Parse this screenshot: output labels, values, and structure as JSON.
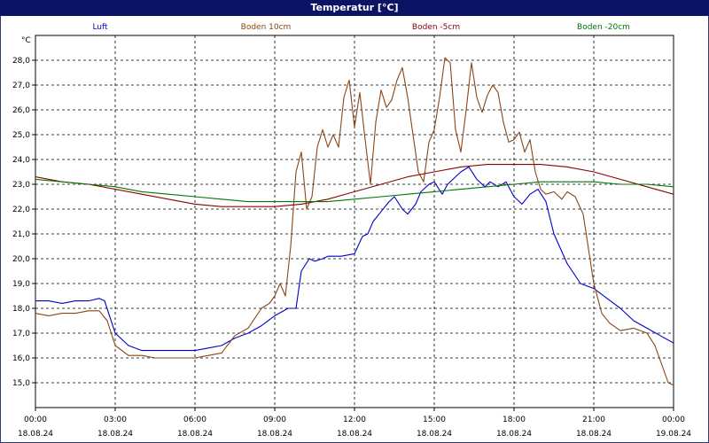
{
  "chart_data": {
    "type": "line",
    "title": "Temperatur [°C]",
    "ylabel": "°C",
    "ylim": [
      14.0,
      29.0
    ],
    "yticks": [
      15.0,
      16.0,
      17.0,
      18.0,
      19.0,
      20.0,
      21.0,
      22.0,
      23.0,
      24.0,
      25.0,
      26.0,
      27.0,
      28.0
    ],
    "ytick_labels": [
      "15,0",
      "16,0",
      "17,0",
      "18,0",
      "19,0",
      "20,0",
      "21,0",
      "22,0",
      "23,0",
      "24,0",
      "25,0",
      "26,0",
      "27,0",
      "28,0"
    ],
    "xlim": [
      0,
      24
    ],
    "xticks": [
      {
        "h": 0,
        "time": "00:00",
        "date": "18.08.24"
      },
      {
        "h": 3,
        "time": "03:00",
        "date": "18.08.24"
      },
      {
        "h": 6,
        "time": "06:00",
        "date": "18.08.24"
      },
      {
        "h": 9,
        "time": "09:00",
        "date": "18.08.24"
      },
      {
        "h": 12,
        "time": "12:00",
        "date": "18.08.24"
      },
      {
        "h": 15,
        "time": "15:00",
        "date": "18.08.24"
      },
      {
        "h": 18,
        "time": "18:00",
        "date": "18.08.24"
      },
      {
        "h": 21,
        "time": "21:00",
        "date": "18.08.24"
      },
      {
        "h": 24,
        "time": "00:00",
        "date": "19.08.24"
      }
    ],
    "grid": true,
    "legend_position": "top",
    "series": [
      {
        "name": "Luft",
        "color": "#0000cc",
        "points": [
          [
            0,
            18.3
          ],
          [
            0.5,
            18.3
          ],
          [
            1,
            18.2
          ],
          [
            1.5,
            18.3
          ],
          [
            2,
            18.3
          ],
          [
            2.4,
            18.4
          ],
          [
            2.6,
            18.3
          ],
          [
            3,
            17.0
          ],
          [
            3.5,
            16.5
          ],
          [
            4,
            16.3
          ],
          [
            4.5,
            16.3
          ],
          [
            5,
            16.3
          ],
          [
            5.5,
            16.3
          ],
          [
            6,
            16.3
          ],
          [
            6.5,
            16.4
          ],
          [
            7,
            16.5
          ],
          [
            7.5,
            16.8
          ],
          [
            8,
            17.0
          ],
          [
            8.5,
            17.3
          ],
          [
            9,
            17.7
          ],
          [
            9.5,
            18.0
          ],
          [
            9.8,
            18.0
          ],
          [
            10,
            19.5
          ],
          [
            10.3,
            20.0
          ],
          [
            10.5,
            19.9
          ],
          [
            10.8,
            20.0
          ],
          [
            11,
            20.1
          ],
          [
            11.5,
            20.1
          ],
          [
            12,
            20.2
          ],
          [
            12.3,
            20.9
          ],
          [
            12.5,
            21.0
          ],
          [
            12.7,
            21.5
          ],
          [
            13,
            21.9
          ],
          [
            13.3,
            22.3
          ],
          [
            13.5,
            22.5
          ],
          [
            13.8,
            22.0
          ],
          [
            14,
            21.8
          ],
          [
            14.3,
            22.2
          ],
          [
            14.5,
            22.7
          ],
          [
            14.8,
            23.0
          ],
          [
            15,
            23.1
          ],
          [
            15.3,
            22.6
          ],
          [
            15.5,
            23.0
          ],
          [
            15.8,
            23.3
          ],
          [
            16,
            23.5
          ],
          [
            16.3,
            23.7
          ],
          [
            16.6,
            23.2
          ],
          [
            16.9,
            22.9
          ],
          [
            17.1,
            23.1
          ],
          [
            17.4,
            22.9
          ],
          [
            17.7,
            23.1
          ],
          [
            18,
            22.5
          ],
          [
            18.3,
            22.2
          ],
          [
            18.6,
            22.6
          ],
          [
            18.9,
            22.8
          ],
          [
            19.2,
            22.3
          ],
          [
            19.5,
            21.0
          ],
          [
            20,
            19.8
          ],
          [
            20.5,
            19.0
          ],
          [
            21,
            18.8
          ],
          [
            21.5,
            18.4
          ],
          [
            22,
            18.0
          ],
          [
            22.5,
            17.5
          ],
          [
            23,
            17.2
          ],
          [
            23.5,
            16.9
          ],
          [
            24,
            16.6
          ]
        ]
      },
      {
        "name": "Boden 10cm",
        "color": "#8b4513",
        "points": [
          [
            0,
            17.8
          ],
          [
            0.5,
            17.7
          ],
          [
            1,
            17.8
          ],
          [
            1.5,
            17.8
          ],
          [
            2,
            17.9
          ],
          [
            2.4,
            17.9
          ],
          [
            2.7,
            17.5
          ],
          [
            3,
            16.5
          ],
          [
            3.5,
            16.1
          ],
          [
            4,
            16.1
          ],
          [
            4.5,
            16.0
          ],
          [
            5,
            16.0
          ],
          [
            5.5,
            16.0
          ],
          [
            6,
            16.0
          ],
          [
            6.5,
            16.1
          ],
          [
            7,
            16.2
          ],
          [
            7.5,
            16.9
          ],
          [
            8,
            17.2
          ],
          [
            8.5,
            18.0
          ],
          [
            8.8,
            18.2
          ],
          [
            9,
            18.5
          ],
          [
            9.2,
            19.0
          ],
          [
            9.4,
            18.5
          ],
          [
            9.6,
            20.5
          ],
          [
            9.8,
            23.5
          ],
          [
            10,
            24.3
          ],
          [
            10.2,
            22.0
          ],
          [
            10.4,
            22.5
          ],
          [
            10.6,
            24.5
          ],
          [
            10.8,
            25.2
          ],
          [
            11,
            24.5
          ],
          [
            11.2,
            25.0
          ],
          [
            11.4,
            24.5
          ],
          [
            11.6,
            26.5
          ],
          [
            11.8,
            27.2
          ],
          [
            12,
            25.3
          ],
          [
            12.2,
            26.7
          ],
          [
            12.4,
            24.8
          ],
          [
            12.6,
            23.0
          ],
          [
            12.8,
            25.5
          ],
          [
            13,
            26.8
          ],
          [
            13.2,
            26.1
          ],
          [
            13.4,
            26.4
          ],
          [
            13.6,
            27.2
          ],
          [
            13.8,
            27.7
          ],
          [
            14,
            26.5
          ],
          [
            14.2,
            25.0
          ],
          [
            14.4,
            23.5
          ],
          [
            14.6,
            23.1
          ],
          [
            14.8,
            24.7
          ],
          [
            15,
            25.2
          ],
          [
            15.2,
            26.5
          ],
          [
            15.4,
            28.1
          ],
          [
            15.6,
            27.9
          ],
          [
            15.8,
            25.2
          ],
          [
            16,
            24.3
          ],
          [
            16.2,
            26.0
          ],
          [
            16.4,
            27.9
          ],
          [
            16.6,
            26.5
          ],
          [
            16.8,
            25.9
          ],
          [
            17,
            26.6
          ],
          [
            17.2,
            27.0
          ],
          [
            17.4,
            26.7
          ],
          [
            17.6,
            25.5
          ],
          [
            17.8,
            24.7
          ],
          [
            18,
            24.8
          ],
          [
            18.2,
            25.1
          ],
          [
            18.4,
            24.3
          ],
          [
            18.6,
            24.8
          ],
          [
            18.8,
            23.5
          ],
          [
            19,
            22.8
          ],
          [
            19.2,
            22.6
          ],
          [
            19.5,
            22.7
          ],
          [
            19.8,
            22.4
          ],
          [
            20,
            22.7
          ],
          [
            20.3,
            22.5
          ],
          [
            20.6,
            21.8
          ],
          [
            21,
            19.0
          ],
          [
            21.3,
            17.8
          ],
          [
            21.6,
            17.4
          ],
          [
            22,
            17.1
          ],
          [
            22.5,
            17.2
          ],
          [
            23,
            17.0
          ],
          [
            23.3,
            16.5
          ],
          [
            23.6,
            15.6
          ],
          [
            23.8,
            15.0
          ],
          [
            24,
            14.9
          ],
          [
            24.3,
            14.6
          ]
        ]
      },
      {
        "name": "Boden -5cm",
        "color": "#8b0000",
        "points": [
          [
            0,
            23.3
          ],
          [
            1,
            23.1
          ],
          [
            2,
            23.0
          ],
          [
            3,
            22.8
          ],
          [
            4,
            22.6
          ],
          [
            5,
            22.4
          ],
          [
            6,
            22.2
          ],
          [
            7,
            22.1
          ],
          [
            8,
            22.1
          ],
          [
            9,
            22.1
          ],
          [
            10,
            22.2
          ],
          [
            11,
            22.4
          ],
          [
            12,
            22.7
          ],
          [
            13,
            23.0
          ],
          [
            14,
            23.3
          ],
          [
            15,
            23.5
          ],
          [
            16,
            23.7
          ],
          [
            17,
            23.8
          ],
          [
            18,
            23.8
          ],
          [
            19,
            23.8
          ],
          [
            20,
            23.7
          ],
          [
            21,
            23.5
          ],
          [
            22,
            23.2
          ],
          [
            23,
            22.9
          ],
          [
            24,
            22.6
          ]
        ]
      },
      {
        "name": "Boden -20cm",
        "color": "#007700",
        "points": [
          [
            0,
            23.2
          ],
          [
            1,
            23.1
          ],
          [
            2,
            23.0
          ],
          [
            3,
            22.9
          ],
          [
            4,
            22.7
          ],
          [
            5,
            22.6
          ],
          [
            6,
            22.5
          ],
          [
            7,
            22.4
          ],
          [
            8,
            22.3
          ],
          [
            9,
            22.3
          ],
          [
            10,
            22.3
          ],
          [
            11,
            22.3
          ],
          [
            12,
            22.4
          ],
          [
            13,
            22.5
          ],
          [
            14,
            22.6
          ],
          [
            15,
            22.7
          ],
          [
            16,
            22.8
          ],
          [
            17,
            22.9
          ],
          [
            18,
            23.0
          ],
          [
            19,
            23.1
          ],
          [
            20,
            23.1
          ],
          [
            21,
            23.1
          ],
          [
            22,
            23.0
          ],
          [
            23,
            23.0
          ],
          [
            24,
            22.9
          ]
        ]
      }
    ]
  }
}
